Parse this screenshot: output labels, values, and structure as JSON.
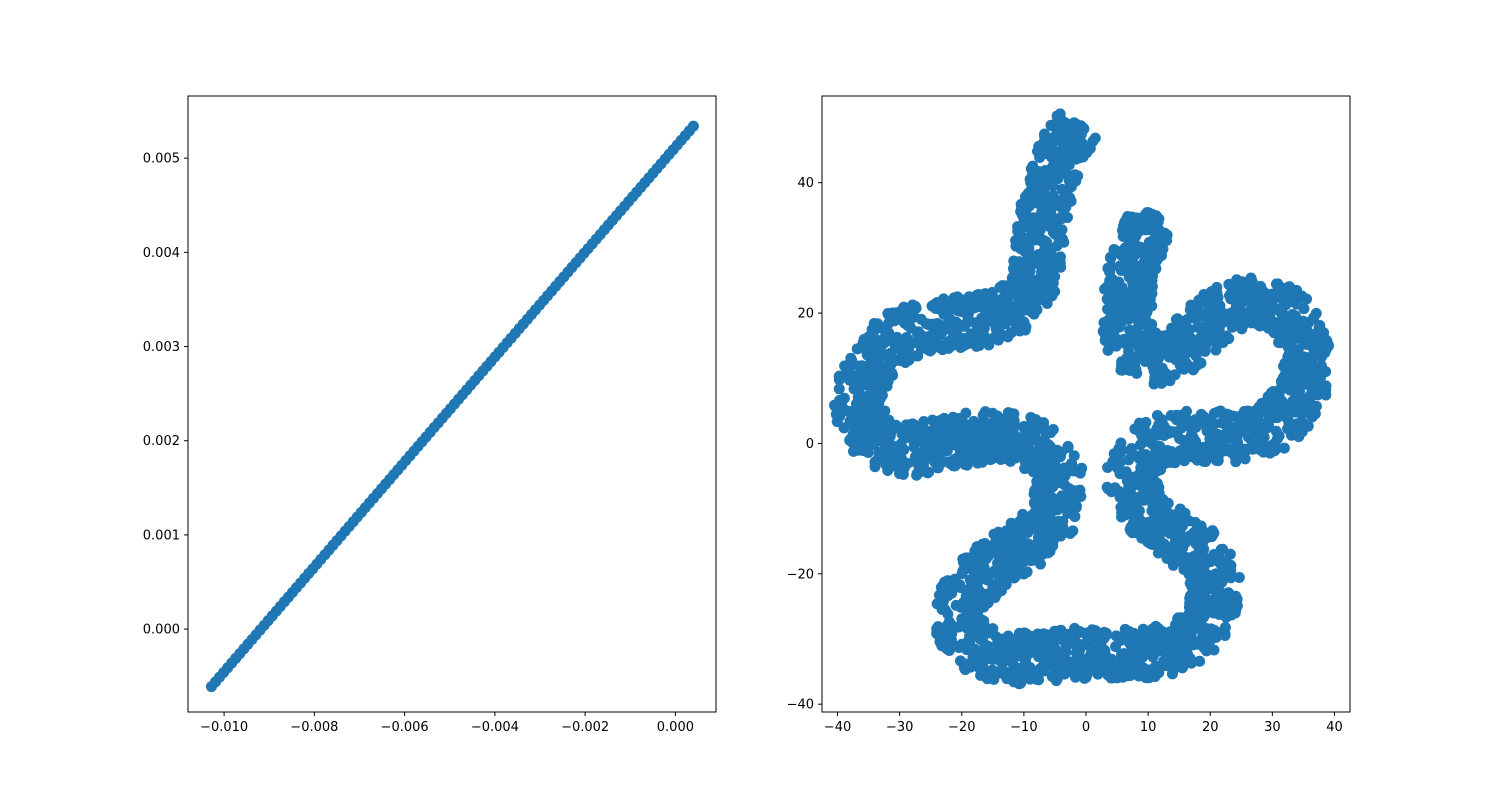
{
  "figure": {
    "background": "#ffffff",
    "marker_color": "#1f77b4"
  },
  "chart_data": [
    {
      "type": "scatter",
      "title": "",
      "xlabel": "",
      "ylabel": "",
      "grid": false,
      "legend": "none",
      "xlim": [
        -0.0108,
        0.0009
      ],
      "ylim": [
        -0.00088,
        0.00566
      ],
      "x_ticks": [
        -0.01,
        -0.008,
        -0.006,
        -0.004,
        -0.002,
        0.0
      ],
      "x_tick_labels": [
        "−0.010",
        "−0.008",
        "−0.006",
        "−0.004",
        "−0.002",
        "0.000"
      ],
      "y_ticks": [
        0.0,
        0.001,
        0.002,
        0.003,
        0.004,
        0.005
      ],
      "y_tick_labels": [
        "0.000",
        "0.001",
        "0.002",
        "0.003",
        "0.004",
        "0.005"
      ],
      "series": [
        {
          "marker": "circle",
          "shape": "line",
          "x_range": [
            -0.01028,
            0.0004
          ],
          "y_range": [
            -0.00061,
            0.00534
          ],
          "count": 120
        }
      ]
    },
    {
      "type": "scatter",
      "title": "",
      "xlabel": "",
      "ylabel": "",
      "grid": false,
      "legend": "none",
      "xlim": [
        -42.5,
        42.5
      ],
      "ylim": [
        -41.2,
        53.3
      ],
      "x_ticks": [
        -40,
        -30,
        -20,
        -10,
        0,
        10,
        20,
        30,
        40
      ],
      "x_tick_labels": [
        "−40",
        "−30",
        "−20",
        "−10",
        "0",
        "10",
        "20",
        "30",
        "40"
      ],
      "y_ticks": [
        -40,
        -20,
        0,
        20,
        40
      ],
      "y_tick_labels": [
        "−40",
        "−20",
        "0",
        "20",
        "40"
      ],
      "series": [
        {
          "marker": "circle",
          "shape": "band",
          "band_width": 8,
          "centerline": [
            [
              -1.5,
              49
            ],
            [
              -3,
              46
            ],
            [
              -5,
              42
            ],
            [
              -6.5,
              36
            ],
            [
              -7.5,
              30
            ],
            [
              -8.5,
              25
            ],
            [
              -11,
              21
            ],
            [
              -16,
              19
            ],
            [
              -21,
              18.5
            ],
            [
              -26,
              18
            ],
            [
              -31,
              16
            ],
            [
              -35,
              12
            ],
            [
              -37,
              7
            ],
            [
              -36,
              3
            ],
            [
              -33,
              0
            ],
            [
              -28,
              -1
            ],
            [
              -23,
              0
            ],
            [
              -17,
              1
            ],
            [
              -11,
              1
            ],
            [
              -6,
              -1.5
            ],
            [
              -4,
              -6
            ],
            [
              -5,
              -11
            ],
            [
              -9,
              -15
            ],
            [
              -14,
              -18
            ],
            [
              -19,
              -22
            ],
            [
              -21,
              -27
            ],
            [
              -19,
              -31
            ],
            [
              -13,
              -33
            ],
            [
              -6,
              -33
            ],
            [
              0,
              -32
            ],
            [
              6,
              -32
            ],
            [
              12,
              -32
            ],
            [
              17,
              -30
            ],
            [
              20,
              -26
            ],
            [
              21,
              -22
            ],
            [
              19,
              -17
            ],
            [
              14,
              -14
            ],
            [
              9,
              -10
            ],
            [
              7,
              -5
            ],
            [
              9,
              -1
            ],
            [
              14,
              1
            ],
            [
              20,
              1
            ],
            [
              26,
              1
            ],
            [
              31,
              3
            ],
            [
              35,
              8
            ],
            [
              36,
              13
            ],
            [
              34,
              19
            ],
            [
              29,
              22
            ],
            [
              23,
              21
            ],
            [
              18,
              17
            ],
            [
              14,
              13
            ],
            [
              10,
              13
            ],
            [
              7,
              15
            ],
            [
              6.5,
              20
            ],
            [
              7,
              25
            ],
            [
              8.5,
              30
            ],
            [
              10.5,
              34
            ]
          ]
        }
      ]
    }
  ]
}
